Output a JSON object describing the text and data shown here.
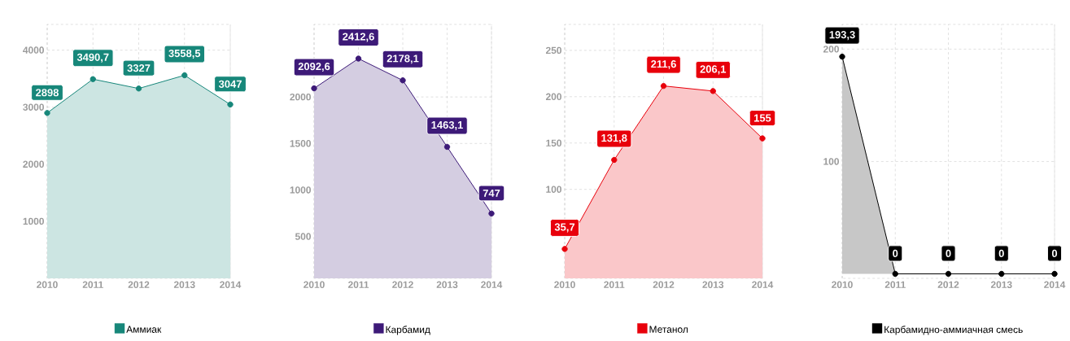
{
  "chart_data": [
    {
      "type": "area",
      "categories": [
        "2010",
        "2011",
        "2012",
        "2013",
        "2014"
      ],
      "series": [
        {
          "name": "Аммиак",
          "color": "#17877a",
          "values": [
            2898,
            3490.7,
            3327,
            3558.5,
            3047
          ],
          "value_labels": [
            "2898",
            "3490,7",
            "3327",
            "3558,5",
            "3047"
          ]
        }
      ],
      "ylim": [
        0,
        4450
      ],
      "yticks": [
        1000,
        2000,
        3000,
        4000
      ],
      "grid": true,
      "legend": "bottom",
      "marker": "circle"
    },
    {
      "type": "area",
      "categories": [
        "2010",
        "2011",
        "2012",
        "2013",
        "2014"
      ],
      "series": [
        {
          "name": "Карбамид",
          "color": "#3d1a78",
          "values": [
            2092.6,
            2412.6,
            2178.1,
            1463.1,
            747
          ],
          "value_labels": [
            "2092,6",
            "2412,6",
            "2178,1",
            "1463,1",
            "747"
          ]
        }
      ],
      "ylim": [
        50,
        2780
      ],
      "yticks": [
        500,
        1000,
        1500,
        2000
      ],
      "grid": true,
      "legend": "bottom",
      "marker": "circle"
    },
    {
      "type": "area",
      "categories": [
        "2010",
        "2011",
        "2012",
        "2013",
        "2014"
      ],
      "series": [
        {
          "name": "Метанол",
          "color": "#e8000b",
          "values": [
            35.7,
            131.8,
            211.6,
            206.1,
            155
          ],
          "value_labels": [
            "35,7",
            "131,8",
            "211,6",
            "206,1",
            "155"
          ]
        }
      ],
      "ylim": [
        4,
        278
      ],
      "yticks": [
        100,
        150,
        200,
        250
      ],
      "grid": true,
      "legend": "bottom",
      "marker": "circle"
    },
    {
      "type": "area",
      "categories": [
        "2010",
        "2011",
        "2012",
        "2013",
        "2014"
      ],
      "series": [
        {
          "name": "Карбамидно-аммиачная смесь",
          "color": "#000000",
          "values": [
            193.3,
            0,
            0,
            0,
            0
          ],
          "value_labels": [
            "193,3",
            "0",
            "0",
            "0",
            "0"
          ]
        }
      ],
      "ylim": [
        -4,
        222
      ],
      "yticks": [
        100,
        200
      ],
      "grid": true,
      "legend": "bottom",
      "marker": "circle"
    }
  ]
}
